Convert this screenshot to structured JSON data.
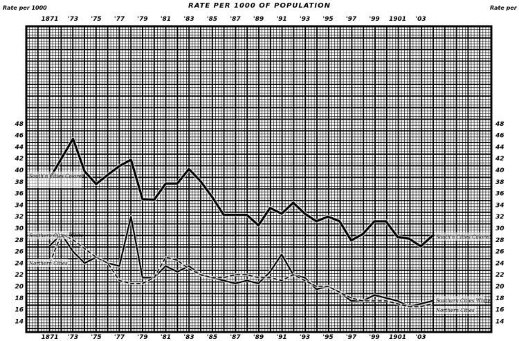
{
  "chart_data": {
    "type": "line",
    "title": "RATE PER 1000 OF POPULATION",
    "ylabel_left": "Rate per 1000",
    "ylabel_right": "Rate per 1000",
    "x_tick_labels": [
      "1871",
      "'73",
      "'75",
      "'77",
      "'79",
      "'81",
      "'83",
      "'85",
      "'87",
      "'89",
      "'91",
      "'93",
      "'95",
      "'97",
      "'99",
      "1901",
      "'03"
    ],
    "x_tick_years": [
      1871,
      1873,
      1875,
      1877,
      1879,
      1881,
      1883,
      1885,
      1887,
      1889,
      1891,
      1893,
      1895,
      1897,
      1899,
      1901,
      1903
    ],
    "y_ticks": [
      14,
      16,
      18,
      20,
      22,
      24,
      26,
      28,
      30,
      32,
      34,
      36,
      38,
      40,
      42,
      44,
      46,
      48
    ],
    "ylim": [
      14,
      48
    ],
    "grid": true,
    "x": [
      1871,
      1872,
      1873,
      1874,
      1875,
      1876,
      1877,
      1878,
      1879,
      1880,
      1881,
      1882,
      1883,
      1884,
      1885,
      1886,
      1887,
      1888,
      1889,
      1890,
      1891,
      1892,
      1893,
      1894,
      1895,
      1896,
      1897,
      1898,
      1899,
      1900,
      1901,
      1902,
      1903,
      1904
    ],
    "series": [
      {
        "name": "South'n Cities Colored",
        "style": "thick",
        "values": [
          38.6,
          42,
          45.4,
          39.8,
          37.6,
          39.2,
          40.7,
          41.8,
          35,
          34.9,
          37.7,
          37.7,
          40.2,
          38.1,
          35.4,
          32.3,
          32.3,
          32.3,
          30.5,
          33.5,
          32.5,
          34.4,
          32.5,
          31.2,
          32,
          31.2,
          27.9,
          29,
          31.2,
          31.2,
          28.5,
          28.2,
          26.9,
          28.7
        ]
      },
      {
        "name": "Southern Cities White",
        "style": "medium",
        "values": [
          27,
          29,
          26,
          24,
          25,
          24,
          23.5,
          32,
          21.5,
          21.5,
          23.5,
          22.5,
          23.5,
          22,
          21.5,
          21,
          20.5,
          21,
          20.5,
          22.5,
          25.5,
          22,
          21.5,
          19.5,
          20,
          19,
          17.5,
          17.5,
          18.5,
          18,
          17.5,
          16.5,
          17,
          17.5
        ]
      },
      {
        "name": "Northern Cities",
        "style": "dashed",
        "values": [
          24,
          29,
          28,
          26.5,
          25,
          24,
          21,
          20.5,
          20.5,
          21.5,
          25,
          24.5,
          23,
          22,
          21.5,
          21.5,
          22,
          22,
          21.5,
          21.5,
          21,
          22,
          21,
          20,
          20,
          19,
          18,
          17.5,
          17.5,
          17.5,
          17,
          16.5,
          16.5,
          17
        ]
      }
    ]
  }
}
